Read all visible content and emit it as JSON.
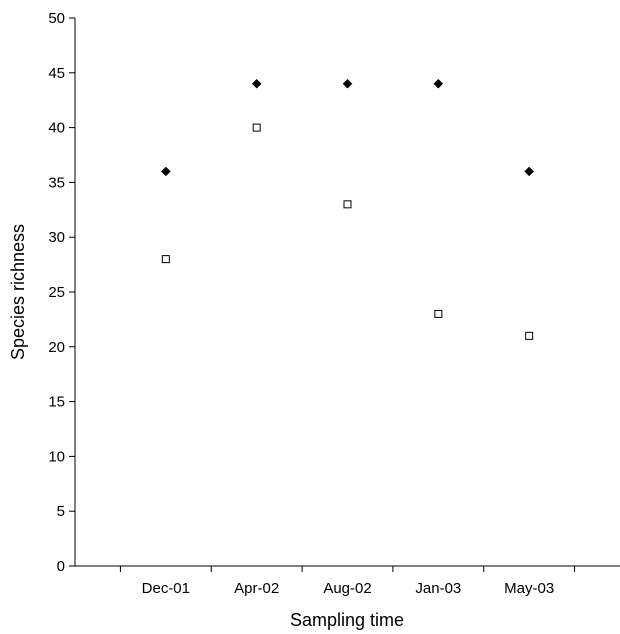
{
  "chart_data": {
    "type": "scatter",
    "title": "",
    "xlabel": "Sampling time",
    "ylabel": "Species richness",
    "categories": [
      "Dec-01",
      "Apr-02",
      "Aug-02",
      "Jan-03",
      "May-03"
    ],
    "ylim": [
      0,
      50
    ],
    "yticks": [
      0,
      5,
      10,
      15,
      20,
      25,
      30,
      35,
      40,
      45,
      50
    ],
    "grid": false,
    "legend": "none",
    "series": [
      {
        "marker": "filled-diamond",
        "color": "#000000",
        "values": [
          36,
          44,
          44,
          44,
          36
        ]
      },
      {
        "marker": "open-square",
        "color": "#000000",
        "values": [
          28,
          40,
          33,
          23,
          21
        ]
      }
    ]
  }
}
